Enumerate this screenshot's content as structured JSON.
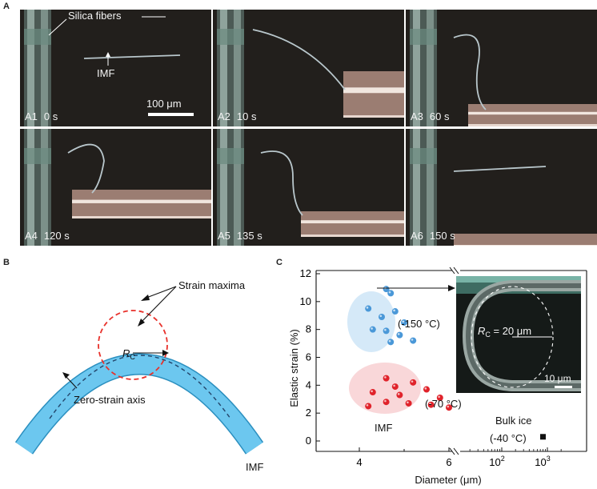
{
  "panel_a": {
    "letter": "A",
    "frames": [
      {
        "tag": "A1",
        "time": "0 s"
      },
      {
        "tag": "A2",
        "time": "10 s"
      },
      {
        "tag": "A3",
        "time": "60 s"
      },
      {
        "tag": "A4",
        "time": "120 s"
      },
      {
        "tag": "A5",
        "time": "135 s"
      },
      {
        "tag": "A6",
        "time": "150 s"
      }
    ],
    "label_silica": "Silica fibers",
    "label_imf": "IMF",
    "scale_bar": "100 μm"
  },
  "panel_b": {
    "letter": "B",
    "label_strain_maxima": "Strain maxima",
    "label_rc": "R",
    "label_rc_sub": "C",
    "label_zero_strain": "Zero-strain axis",
    "label_imf": "IMF",
    "colors": {
      "fiber": "#6cc7ef",
      "circle": "#e8312b"
    }
  },
  "panel_c": {
    "letter": "C",
    "label_150": "(-150 °C)",
    "label_70": "(-70 °C)",
    "label_imf": "IMF",
    "label_bulk": "Bulk ice",
    "label_bulk_temp": "(-40 °C)",
    "inset_rc": "R",
    "inset_rc_sub": "C",
    "inset_rc_value": " = 20 μm",
    "inset_scale": "10 μm",
    "colors": {
      "blue": "#4a98d8",
      "red": "#e0232b",
      "blue_halo": "#d5e9f8",
      "red_halo": "#f9d7d9"
    }
  },
  "chart_data": {
    "type": "scatter",
    "xlabel": "Diameter (μm)",
    "ylabel": "Elastic strain (%)",
    "ylim": [
      0,
      12
    ],
    "yticks": [
      "0",
      "2",
      "4",
      "6",
      "8",
      "10",
      "12"
    ],
    "xticks_left": [
      "4",
      "6"
    ],
    "xticks_right_base": [
      "10",
      "10"
    ],
    "xticks_right_exp": [
      "2",
      "3"
    ],
    "x_axis": "broken; linear 3–7 on the left, logarithmic 10–3000 on the right",
    "series": [
      {
        "name": "(-150 °C)",
        "color": "#4a98d8",
        "points": [
          [
            4.6,
            10.9
          ],
          [
            4.7,
            10.6
          ],
          [
            4.2,
            9.5
          ],
          [
            4.8,
            9.3
          ],
          [
            4.5,
            8.9
          ],
          [
            5.0,
            8.5
          ],
          [
            4.3,
            8.0
          ],
          [
            4.6,
            7.9
          ],
          [
            4.9,
            7.6
          ],
          [
            5.2,
            7.2
          ],
          [
            4.7,
            7.1
          ]
        ]
      },
      {
        "name": "(-70 °C)",
        "color": "#e0232b",
        "points": [
          [
            4.6,
            4.5
          ],
          [
            5.2,
            4.2
          ],
          [
            4.8,
            3.9
          ],
          [
            5.5,
            3.7
          ],
          [
            4.3,
            3.5
          ],
          [
            4.9,
            3.3
          ],
          [
            5.8,
            3.1
          ],
          [
            4.6,
            2.8
          ],
          [
            5.1,
            2.7
          ],
          [
            5.6,
            2.6
          ],
          [
            4.2,
            2.5
          ],
          [
            6.0,
            2.4
          ]
        ]
      },
      {
        "name": "Bulk ice",
        "color": "#111111",
        "points": [
          [
            800,
            0.3
          ]
        ]
      }
    ]
  }
}
